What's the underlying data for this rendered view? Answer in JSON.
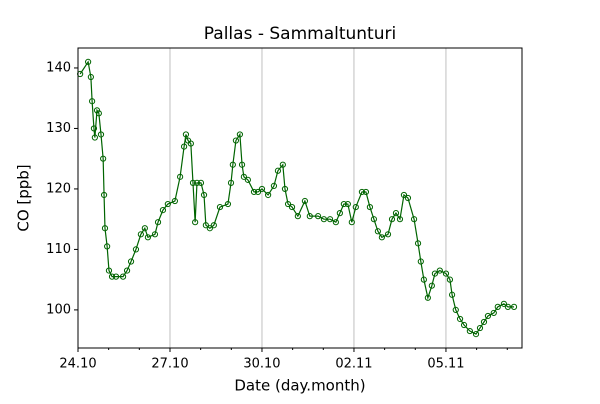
{
  "chart_data": {
    "type": "line",
    "title": "Pallas - Sammaltunturi",
    "xlabel": "Date (day.month)",
    "ylabel": "CO [ppb]",
    "x": [
      0.07,
      0.33,
      0.42,
      0.46,
      0.52,
      0.55,
      0.62,
      0.68,
      0.75,
      0.82,
      0.85,
      0.88,
      0.95,
      1.01,
      1.11,
      1.24,
      1.47,
      1.6,
      1.73,
      1.89,
      2.05,
      2.18,
      2.28,
      2.51,
      2.61,
      2.77,
      2.93,
      3.16,
      3.33,
      3.46,
      3.52,
      3.59,
      3.68,
      3.75,
      3.82,
      3.88,
      4.01,
      4.11,
      4.17,
      4.3,
      4.43,
      4.63,
      4.89,
      4.99,
      5.05,
      5.15,
      5.28,
      5.35,
      5.41,
      5.54,
      5.74,
      5.87,
      6.0,
      6.2,
      6.39,
      6.52,
      6.68,
      6.75,
      6.85,
      6.98,
      7.17,
      7.4,
      7.56,
      7.83,
      8.02,
      8.22,
      8.41,
      8.54,
      8.67,
      8.8,
      8.93,
      9.06,
      9.26,
      9.39,
      9.52,
      9.65,
      9.78,
      9.91,
      10.11,
      10.24,
      10.37,
      10.5,
      10.63,
      10.76,
      10.96,
      11.09,
      11.18,
      11.28,
      11.41,
      11.54,
      11.64,
      11.8,
      12.0,
      12.13,
      12.2,
      12.32,
      12.46,
      12.59,
      12.78,
      12.98,
      13.11,
      13.24,
      13.37,
      13.56,
      13.69,
      13.89,
      14.02,
      14.22
    ],
    "series": [
      {
        "name": "CO",
        "color": "#006400",
        "values": [
          139,
          141,
          138.5,
          134.5,
          130,
          128.5,
          133,
          132.5,
          129,
          125,
          119,
          113.5,
          110.5,
          106.5,
          105.5,
          105.5,
          105.5,
          106.5,
          108,
          110,
          112.5,
          113.5,
          112,
          112.5,
          114.5,
          116.5,
          117.5,
          118,
          122,
          127,
          129,
          128,
          127.5,
          121,
          114.5,
          121,
          121,
          119,
          114,
          113.5,
          114,
          117,
          117.5,
          121,
          124,
          128,
          129,
          124,
          122,
          121.5,
          119.5,
          119.5,
          120,
          119,
          120.5,
          123,
          124,
          120,
          117.5,
          117,
          115.5,
          118,
          115.5,
          115.5,
          115,
          115,
          114.5,
          116,
          117.5,
          117.5,
          114.5,
          117,
          119.5,
          119.5,
          117,
          115,
          113,
          112,
          112.5,
          115,
          116,
          115,
          119,
          118.5,
          115,
          111,
          108,
          105,
          102,
          104,
          106,
          106.5,
          106,
          105,
          102.5,
          100,
          98.5,
          97.5,
          96.5,
          96,
          97,
          98,
          99,
          99.5,
          100.5,
          101,
          100.5,
          100.5
        ]
      }
    ],
    "xlim": [
      0,
      14.48
    ],
    "ylim": [
      93.7,
      143.3
    ],
    "xticks": [
      {
        "value": 0,
        "label": "24.10"
      },
      {
        "value": 3,
        "label": "27.10"
      },
      {
        "value": 6,
        "label": "30.10"
      },
      {
        "value": 9,
        "label": "02.11"
      },
      {
        "value": 12,
        "label": "05.11"
      }
    ],
    "xminorticks": [
      1,
      2,
      4,
      5,
      7,
      8,
      10,
      11,
      13,
      14
    ],
    "yticks": [
      100,
      110,
      120,
      130,
      140
    ],
    "grid": "x"
  }
}
